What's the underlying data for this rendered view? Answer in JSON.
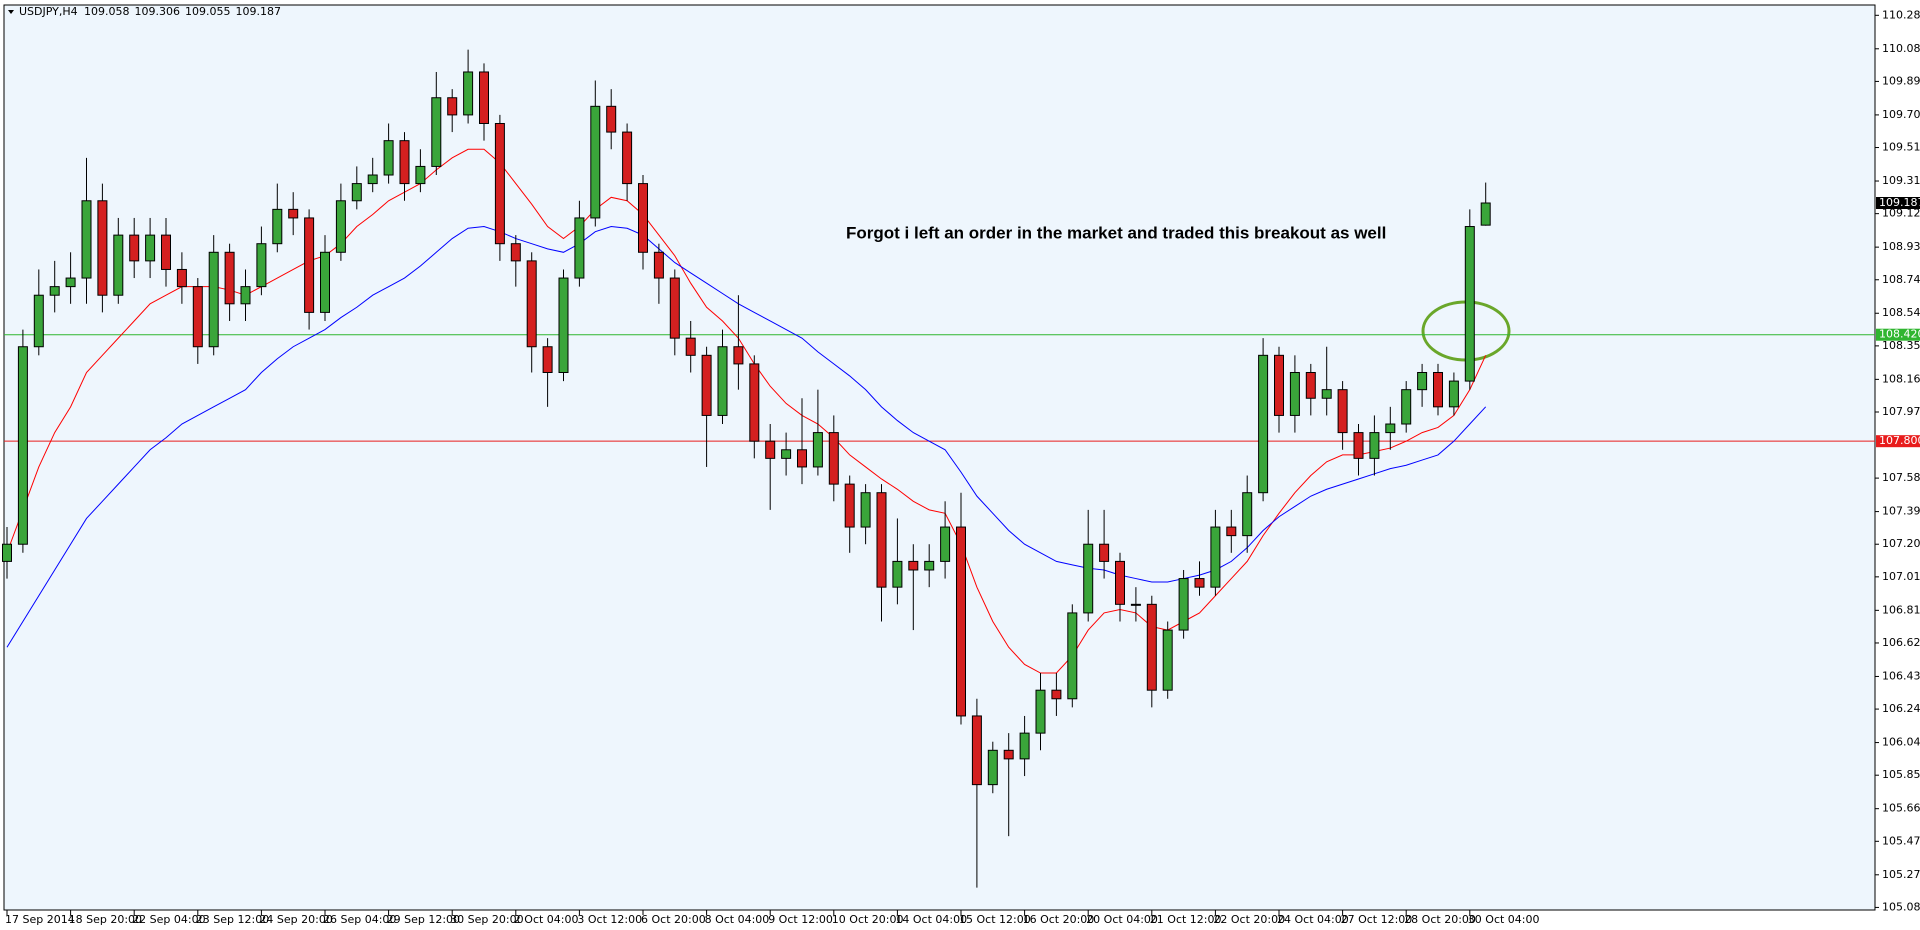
{
  "chart_data": {
    "type": "candlestick",
    "symbol": "USDJPY,H4",
    "annotation": "Forgot i left an order in the market and traded this breakout as well",
    "categories": [
      "17 Sep 2014",
      null,
      null,
      null,
      "18 Sep 20:00",
      null,
      null,
      null,
      "22 Sep 04:00",
      null,
      null,
      null,
      "23 Sep 12:00",
      null,
      null,
      null,
      "24 Sep 20:00",
      null,
      null,
      null,
      "26 Sep 04:00",
      null,
      null,
      null,
      "29 Sep 12:00",
      null,
      null,
      null,
      "30 Sep 20:00",
      null,
      null,
      null,
      "2 Oct 04:00",
      null,
      null,
      null,
      "3 Oct 12:00",
      null,
      null,
      null,
      "6 Oct 20:00",
      null,
      null,
      null,
      "8 Oct 04:00",
      null,
      null,
      null,
      "9 Oct 12:00",
      null,
      null,
      null,
      "10 Oct 20:00",
      null,
      null,
      null,
      "14 Oct 04:00",
      null,
      null,
      null,
      "15 Oct 12:00",
      null,
      null,
      null,
      "16 Oct 20:00",
      null,
      null,
      null,
      "20 Oct 04:00",
      null,
      null,
      null,
      "21 Oct 12:00",
      null,
      null,
      null,
      "22 Oct 20:00",
      null,
      null,
      null,
      "24 Oct 04:00",
      null,
      null,
      null,
      "27 Oct 12:00",
      null,
      null,
      null,
      "28 Oct 20:00",
      null,
      null,
      null,
      "30 Oct 04:00",
      null
    ],
    "open": [
      107.1,
      107.2,
      108.35,
      108.65,
      108.7,
      108.75,
      109.2,
      108.65,
      109.0,
      108.85,
      109.0,
      108.8,
      108.7,
      108.35,
      108.9,
      108.6,
      108.7,
      108.95,
      109.15,
      109.1,
      108.55,
      108.9,
      109.2,
      109.3,
      109.35,
      109.55,
      109.3,
      109.4,
      109.8,
      109.7,
      109.95,
      109.65,
      108.95,
      108.85,
      108.35,
      108.2,
      108.75,
      109.1,
      109.75,
      109.6,
      109.3,
      108.9,
      108.75,
      108.4,
      108.3,
      107.95,
      108.35,
      108.25,
      107.8,
      107.7,
      107.75,
      107.65,
      107.85,
      107.55,
      107.3,
      107.5,
      106.95,
      107.1,
      107.05,
      107.1,
      107.3,
      106.2,
      105.8,
      106.0,
      105.95,
      106.1,
      106.35,
      106.3,
      106.8,
      107.2,
      107.1,
      106.85,
      106.85,
      106.35,
      106.7,
      107.0,
      106.95,
      107.3,
      107.25,
      107.5,
      108.3,
      107.95,
      108.2,
      108.05,
      108.1,
      107.85,
      107.7,
      107.85,
      107.9,
      108.1,
      108.2,
      108.0,
      108.15,
      109.058
    ],
    "high": [
      107.3,
      108.45,
      108.8,
      108.85,
      108.9,
      109.45,
      109.3,
      109.1,
      109.1,
      109.1,
      109.1,
      108.9,
      108.75,
      109.0,
      108.95,
      108.8,
      109.05,
      109.3,
      109.25,
      109.15,
      109.0,
      109.3,
      109.4,
      109.45,
      109.65,
      109.6,
      109.5,
      109.95,
      109.85,
      110.08,
      110.0,
      109.7,
      109.0,
      108.9,
      108.4,
      108.8,
      109.2,
      109.9,
      109.85,
      109.65,
      109.35,
      108.95,
      108.8,
      108.5,
      108.35,
      108.45,
      108.65,
      108.3,
      107.9,
      107.85,
      108.05,
      108.1,
      107.95,
      107.6,
      107.55,
      107.55,
      107.35,
      107.2,
      107.2,
      107.45,
      107.5,
      106.3,
      106.05,
      106.1,
      106.2,
      106.45,
      106.45,
      106.85,
      107.4,
      107.4,
      107.15,
      106.95,
      106.9,
      106.75,
      107.05,
      107.1,
      107.4,
      107.4,
      107.6,
      108.4,
      108.35,
      108.3,
      108.25,
      108.35,
      108.15,
      107.9,
      107.95,
      108.0,
      108.15,
      108.25,
      108.25,
      108.2,
      109.15,
      109.306
    ],
    "low": [
      107.0,
      107.15,
      108.3,
      108.55,
      108.6,
      108.6,
      108.55,
      108.6,
      108.75,
      108.75,
      108.7,
      108.6,
      108.25,
      108.3,
      108.5,
      108.5,
      108.65,
      108.9,
      109.0,
      108.45,
      108.5,
      108.85,
      109.15,
      109.25,
      109.3,
      109.2,
      109.25,
      109.35,
      109.6,
      109.65,
      109.55,
      108.85,
      108.7,
      108.2,
      108.0,
      108.15,
      108.7,
      109.05,
      109.5,
      109.2,
      108.8,
      108.6,
      108.3,
      108.2,
      107.65,
      107.9,
      108.1,
      107.7,
      107.4,
      107.6,
      107.55,
      107.6,
      107.45,
      107.15,
      107.2,
      106.75,
      106.85,
      106.7,
      106.95,
      107.0,
      106.15,
      105.2,
      105.75,
      105.5,
      105.85,
      106.0,
      106.2,
      106.25,
      106.75,
      107.0,
      106.75,
      106.75,
      106.25,
      106.3,
      106.65,
      106.9,
      106.9,
      107.15,
      107.15,
      107.45,
      107.85,
      107.85,
      107.95,
      107.95,
      107.75,
      107.6,
      107.6,
      107.75,
      107.85,
      108.0,
      107.95,
      107.95,
      108.1,
      109.055
    ],
    "close": [
      107.2,
      108.35,
      108.65,
      108.7,
      108.75,
      109.2,
      108.65,
      109.0,
      108.85,
      109.0,
      108.8,
      108.7,
      108.35,
      108.9,
      108.6,
      108.7,
      108.95,
      109.15,
      109.1,
      108.55,
      108.9,
      109.2,
      109.3,
      109.35,
      109.55,
      109.3,
      109.4,
      109.8,
      109.7,
      109.95,
      109.65,
      108.95,
      108.85,
      108.35,
      108.2,
      108.75,
      109.1,
      109.75,
      109.6,
      109.3,
      108.9,
      108.75,
      108.4,
      108.3,
      107.95,
      108.35,
      108.25,
      107.8,
      107.7,
      107.75,
      107.65,
      107.85,
      107.55,
      107.3,
      107.5,
      106.95,
      107.1,
      107.05,
      107.1,
      107.3,
      106.2,
      105.8,
      106.0,
      105.95,
      106.1,
      106.35,
      106.3,
      106.8,
      107.2,
      107.1,
      106.85,
      106.85,
      106.35,
      106.7,
      107.0,
      106.95,
      107.3,
      107.25,
      107.5,
      108.3,
      107.95,
      108.2,
      108.05,
      108.1,
      107.85,
      107.7,
      107.85,
      107.9,
      108.1,
      108.2,
      108.0,
      108.15,
      109.05,
      109.187
    ],
    "up_color": "#3aa53a",
    "down_color": "#d42020",
    "lines": [
      {
        "color": "#ff0000",
        "values": [
          107.15,
          107.4,
          107.65,
          107.85,
          108.0,
          108.2,
          108.3,
          108.4,
          108.5,
          108.6,
          108.65,
          108.7,
          108.7,
          108.7,
          108.68,
          108.65,
          108.7,
          108.75,
          108.8,
          108.85,
          108.88,
          108.95,
          109.05,
          109.12,
          109.2,
          109.25,
          109.3,
          109.38,
          109.45,
          109.5,
          109.5,
          109.42,
          109.3,
          109.18,
          109.05,
          108.98,
          109.05,
          109.15,
          109.22,
          109.2,
          109.12,
          109.0,
          108.88,
          108.72,
          108.58,
          108.5,
          108.4,
          108.25,
          108.12,
          108.02,
          107.95,
          107.9,
          107.82,
          107.72,
          107.65,
          107.58,
          107.52,
          107.45,
          107.4,
          107.38,
          107.2,
          106.95,
          106.75,
          106.6,
          106.5,
          106.45,
          106.45,
          106.55,
          106.7,
          106.8,
          106.82,
          106.8,
          106.72,
          106.7,
          106.75,
          106.8,
          106.9,
          107.0,
          107.1,
          107.25,
          107.38,
          107.5,
          107.6,
          107.68,
          107.72,
          107.72,
          107.74,
          107.76,
          107.8,
          107.85,
          107.88,
          107.95,
          108.1,
          108.3
        ]
      },
      {
        "color": "#0000ff",
        "values": [
          106.6,
          106.75,
          106.9,
          107.05,
          107.2,
          107.35,
          107.45,
          107.55,
          107.65,
          107.75,
          107.82,
          107.9,
          107.95,
          108.0,
          108.05,
          108.1,
          108.2,
          108.28,
          108.35,
          108.4,
          108.45,
          108.52,
          108.58,
          108.65,
          108.7,
          108.75,
          108.82,
          108.9,
          108.98,
          109.04,
          109.05,
          109.02,
          108.98,
          108.95,
          108.92,
          108.9,
          108.95,
          109.02,
          109.05,
          109.04,
          109.0,
          108.92,
          108.84,
          108.78,
          108.72,
          108.66,
          108.6,
          108.55,
          108.5,
          108.45,
          108.4,
          108.32,
          108.25,
          108.18,
          108.1,
          108.0,
          107.92,
          107.85,
          107.8,
          107.75,
          107.62,
          107.48,
          107.38,
          107.28,
          107.2,
          107.15,
          107.1,
          107.08,
          107.06,
          107.05,
          107.02,
          107.0,
          106.98,
          106.98,
          107.0,
          107.02,
          107.05,
          107.1,
          107.18,
          107.28,
          107.36,
          107.42,
          107.48,
          107.52,
          107.55,
          107.58,
          107.61,
          107.64,
          107.66,
          107.69,
          107.72,
          107.8,
          107.9,
          108.0
        ]
      }
    ],
    "levels": [
      {
        "value": 108.42,
        "label": "108.420",
        "color": "#2fb52f"
      },
      {
        "value": 107.8,
        "label": "107.800",
        "color": "#e81c1c"
      }
    ],
    "ylim": [
      105.07,
      110.34
    ],
    "yticks": [
      {
        "value": 110.28,
        "label": "110.280"
      },
      110.085,
      109.895,
      {
        "value": 109.7,
        "label": "109.700"
      },
      {
        "value": 109.51,
        "label": "109.510"
      },
      109.315,
      109.125,
      {
        "value": 108.93,
        "label": "108.930"
      },
      {
        "value": 108.74,
        "label": "108.740"
      },
      108.545,
      108.355,
      {
        "value": 108.16,
        "label": "108.160"
      },
      {
        "value": 107.97,
        "label": "107.970"
      },
      107.585,
      {
        "value": 107.39,
        "label": "107.390"
      },
      {
        "value": 107.2,
        "label": "107.200"
      },
      {
        "value": 107.01,
        "label": "107.010"
      },
      106.815,
      106.625,
      {
        "value": 106.43,
        "label": "106.430"
      },
      {
        "value": 106.24,
        "label": "106.240"
      },
      106.045,
      105.855,
      {
        "value": 105.66,
        "label": "105.660"
      },
      {
        "value": 105.47,
        "label": "105.470"
      },
      105.275,
      105.085
    ]
  }
}
